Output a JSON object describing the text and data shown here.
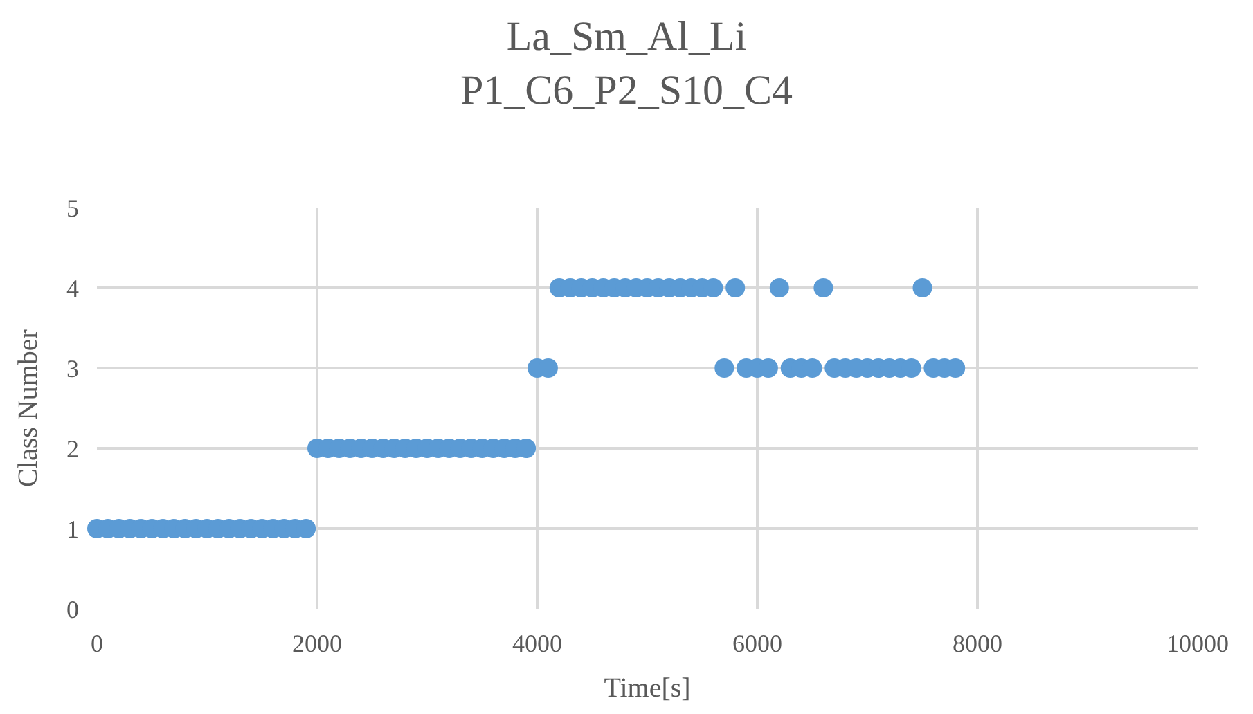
{
  "chart_data": {
    "type": "scatter",
    "title": "La_Sm_Al_Li",
    "subtitle": "P1_C6_P2_S10_C4",
    "xlabel": "Time[s]",
    "ylabel": "Class Number",
    "x": [
      0,
      100,
      200,
      300,
      400,
      500,
      600,
      700,
      800,
      900,
      1000,
      1100,
      1200,
      1300,
      1400,
      1500,
      1600,
      1700,
      1800,
      1900,
      2000,
      2100,
      2200,
      2300,
      2400,
      2500,
      2600,
      2700,
      2800,
      2900,
      3000,
      3100,
      3200,
      3300,
      3400,
      3500,
      3600,
      3700,
      3800,
      3900,
      4000,
      4100,
      4200,
      4300,
      4400,
      4500,
      4600,
      4700,
      4800,
      4900,
      5000,
      5100,
      5200,
      5300,
      5400,
      5500,
      5600,
      5700,
      5800,
      5900,
      6000,
      6100,
      6200,
      6300,
      6400,
      6500,
      6600,
      6700,
      6800,
      6900,
      7000,
      7100,
      7200,
      7300,
      7400,
      7500,
      7600,
      7700,
      7800
    ],
    "series": [
      {
        "color": "#5b9bd5",
        "values": [
          1,
          1,
          1,
          1,
          1,
          1,
          1,
          1,
          1,
          1,
          1,
          1,
          1,
          1,
          1,
          1,
          1,
          1,
          1,
          1,
          2,
          2,
          2,
          2,
          2,
          2,
          2,
          2,
          2,
          2,
          2,
          2,
          2,
          2,
          2,
          2,
          2,
          2,
          2,
          2,
          3,
          3,
          4,
          4,
          4,
          4,
          4,
          4,
          4,
          4,
          4,
          4,
          4,
          4,
          4,
          4,
          4,
          3,
          4,
          3,
          3,
          3,
          4,
          3,
          3,
          3,
          4,
          3,
          3,
          3,
          3,
          3,
          3,
          3,
          3,
          4,
          3,
          3,
          3
        ]
      }
    ],
    "xlim": [
      0,
      10000
    ],
    "xticks": [
      0,
      2000,
      4000,
      6000,
      8000,
      10000
    ],
    "ylim": [
      0,
      5
    ],
    "yticks": [
      0,
      1,
      2,
      3,
      4,
      5
    ],
    "grid": true,
    "marker": "circle",
    "legend": false
  }
}
